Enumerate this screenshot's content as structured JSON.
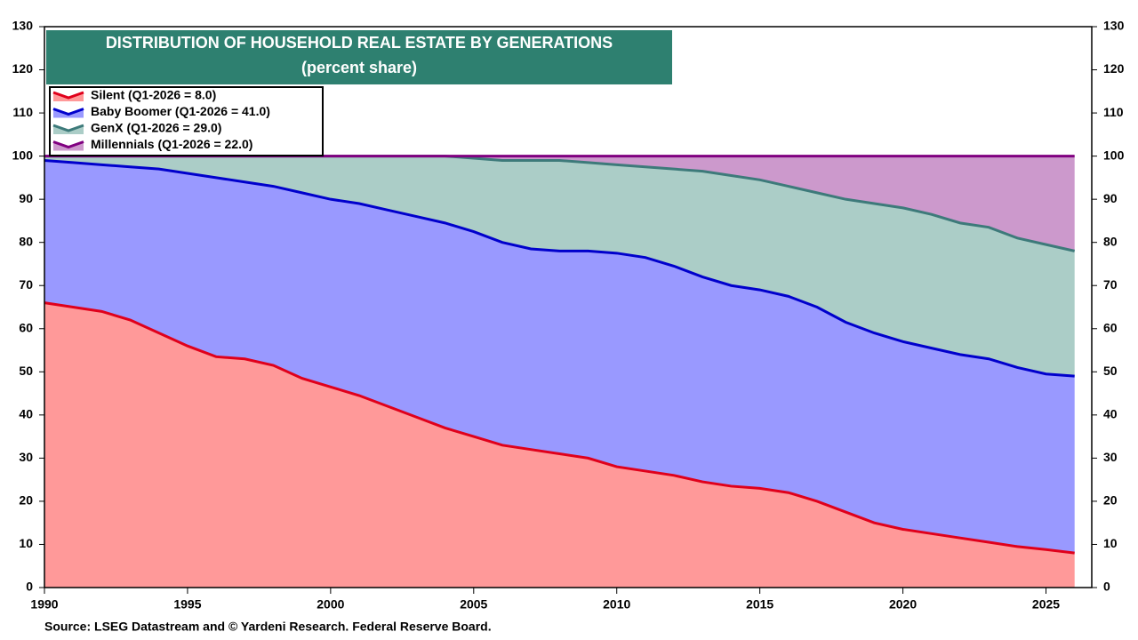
{
  "chart_data": {
    "type": "stacked-area",
    "title": "DISTRIBUTION OF HOUSEHOLD REAL ESTATE BY GENERATIONS",
    "subtitle": "(percent share)",
    "source": "Source: LSEG Datastream and © Yardeni Research. Federal Reserve Board.",
    "x": [
      1990,
      1991,
      1992,
      1993,
      1994,
      1995,
      1996,
      1997,
      1998,
      1999,
      2000,
      2001,
      2002,
      2003,
      2004,
      2005,
      2006,
      2007,
      2008,
      2009,
      2010,
      2011,
      2012,
      2013,
      2014,
      2015,
      2016,
      2017,
      2018,
      2019,
      2020,
      2021,
      2022,
      2023,
      2024,
      2025,
      2026
    ],
    "series": [
      {
        "name": "Silent (Q1-2026 = 8.0)",
        "color": "#e0001b",
        "fill": "#ff9999",
        "values": [
          66,
          65,
          64,
          62,
          59,
          56,
          53.5,
          53,
          51.5,
          48.5,
          46.5,
          44.5,
          42,
          39.5,
          37,
          35,
          33,
          32,
          31,
          30,
          28,
          27,
          26,
          24.5,
          23.5,
          23,
          22,
          20,
          17.5,
          15,
          13.5,
          12.5,
          11.5,
          10.5,
          9.5,
          8.8,
          8
        ]
      },
      {
        "name": "Baby Boomer (Q1-2026 = 41.0)",
        "color": "#0000cc",
        "fill": "#9999ff",
        "values": [
          33,
          33.5,
          34,
          35.5,
          38,
          40,
          41.5,
          41,
          41.5,
          43,
          43.5,
          44.5,
          45.5,
          46.5,
          47.5,
          47.5,
          47,
          46.5,
          47,
          48,
          49.5,
          49.5,
          48.5,
          47.5,
          46.5,
          46,
          45.5,
          45,
          44,
          44,
          43.5,
          43,
          42.5,
          42.5,
          41.5,
          40.7,
          41
        ]
      },
      {
        "name": "GenX (Q1-2026 = 29.0)",
        "color": "#3d7a7a",
        "fill": "#abcdc7",
        "values": [
          1,
          1.5,
          2,
          2.5,
          3,
          4,
          5,
          6,
          7,
          8.5,
          10,
          11,
          12.5,
          14,
          15.5,
          17,
          19,
          20.5,
          21,
          20.5,
          20.5,
          21,
          22.5,
          24.5,
          25.5,
          25.5,
          25.5,
          26.5,
          28.5,
          30,
          31,
          31,
          30.5,
          30.5,
          30,
          30,
          29
        ]
      },
      {
        "name": "Millennials (Q1-2026 = 22.0)",
        "color": "#800080",
        "fill": "#cc99cc",
        "values": [
          0,
          0,
          0,
          0,
          0,
          0,
          0,
          0,
          0,
          0,
          0,
          0,
          0,
          0,
          0,
          0.5,
          1,
          1,
          1,
          1.5,
          2,
          2.5,
          3,
          3.5,
          4.5,
          5.5,
          7,
          8.5,
          10,
          11,
          12,
          13.5,
          15.5,
          16.5,
          19,
          20.5,
          22
        ]
      }
    ],
    "xlim": [
      1990,
      2026.6
    ],
    "xticks": [
      1990,
      1995,
      2000,
      2005,
      2010,
      2015,
      2020,
      2025
    ],
    "ylim": [
      0,
      130
    ],
    "yticks": [
      0,
      10,
      20,
      30,
      40,
      50,
      60,
      70,
      80,
      90,
      100,
      110,
      120,
      130
    ],
    "legend": "top-left"
  }
}
